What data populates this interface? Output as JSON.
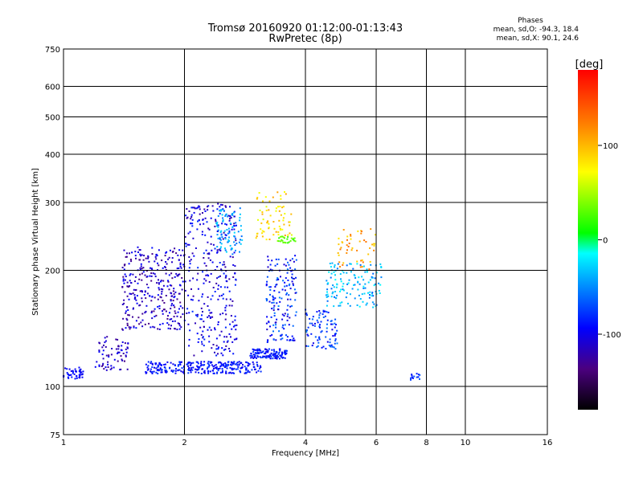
{
  "chart_data": {
    "type": "scatter",
    "title": "Tromsø 20160920 01:12:00-01:13:43",
    "subtitle": "RwPretec (8p)",
    "xlabel": "Frequency [MHz]",
    "ylabel": "Stationary phase Virtual Height [km]",
    "x_scale": "log",
    "y_scale": "log",
    "xlim": [
      1,
      16
    ],
    "ylim": [
      75,
      750
    ],
    "xticks": [
      1,
      2,
      4,
      6,
      8,
      10,
      16
    ],
    "yticks": [
      75,
      100,
      200,
      300,
      400,
      500,
      600,
      750
    ],
    "grid": true,
    "colorbar": {
      "label": "[deg]",
      "range": [
        -180,
        180
      ],
      "ticks": [
        100,
        0,
        -100
      ]
    },
    "stats": {
      "header": "Phases",
      "line_o": "mean, sd,O: -94.3, 18.4",
      "line_x": "mean, sd,X:  90.1, 24.6"
    },
    "clusters": [
      {
        "f": [
          1.0,
          1.12
        ],
        "h": [
          104,
          112
        ],
        "phase": [
          -110,
          -90
        ],
        "n": 45
      },
      {
        "f": [
          1.2,
          1.45
        ],
        "h": [
          110,
          135
        ],
        "phase": [
          -140,
          -100
        ],
        "n": 70
      },
      {
        "f": [
          1.4,
          2.0
        ],
        "h": [
          140,
          230
        ],
        "phase": [
          -140,
          -95
        ],
        "n": 320
      },
      {
        "f": [
          1.6,
          3.1
        ],
        "h": [
          108,
          116
        ],
        "phase": [
          -110,
          -80
        ],
        "n": 280
      },
      {
        "f": [
          2.0,
          2.7
        ],
        "h": [
          120,
          300
        ],
        "phase": [
          -130,
          -85
        ],
        "n": 320
      },
      {
        "f": [
          2.4,
          2.8
        ],
        "h": [
          220,
          290
        ],
        "phase": [
          -70,
          -30
        ],
        "n": 80
      },
      {
        "f": [
          2.9,
          3.6
        ],
        "h": [
          118,
          125
        ],
        "phase": [
          -110,
          -80
        ],
        "n": 120
      },
      {
        "f": [
          3.0,
          3.7
        ],
        "h": [
          240,
          320
        ],
        "phase": [
          60,
          110
        ],
        "n": 70
      },
      {
        "f": [
          3.2,
          3.8
        ],
        "h": [
          130,
          220
        ],
        "phase": [
          -120,
          -60
        ],
        "n": 160
      },
      {
        "f": [
          3.4,
          3.8
        ],
        "h": [
          235,
          245
        ],
        "phase": [
          10,
          40
        ],
        "n": 25
      },
      {
        "f": [
          4.0,
          4.8
        ],
        "h": [
          125,
          160
        ],
        "phase": [
          -110,
          -60
        ],
        "n": 90
      },
      {
        "f": [
          4.5,
          6.2
        ],
        "h": [
          160,
          210
        ],
        "phase": [
          -70,
          -20
        ],
        "n": 140
      },
      {
        "f": [
          4.8,
          6.0
        ],
        "h": [
          200,
          260
        ],
        "phase": [
          80,
          130
        ],
        "n": 50
      },
      {
        "f": [
          7.3,
          7.7
        ],
        "h": [
          104,
          108
        ],
        "phase": [
          -100,
          -70
        ],
        "n": 14
      }
    ]
  }
}
